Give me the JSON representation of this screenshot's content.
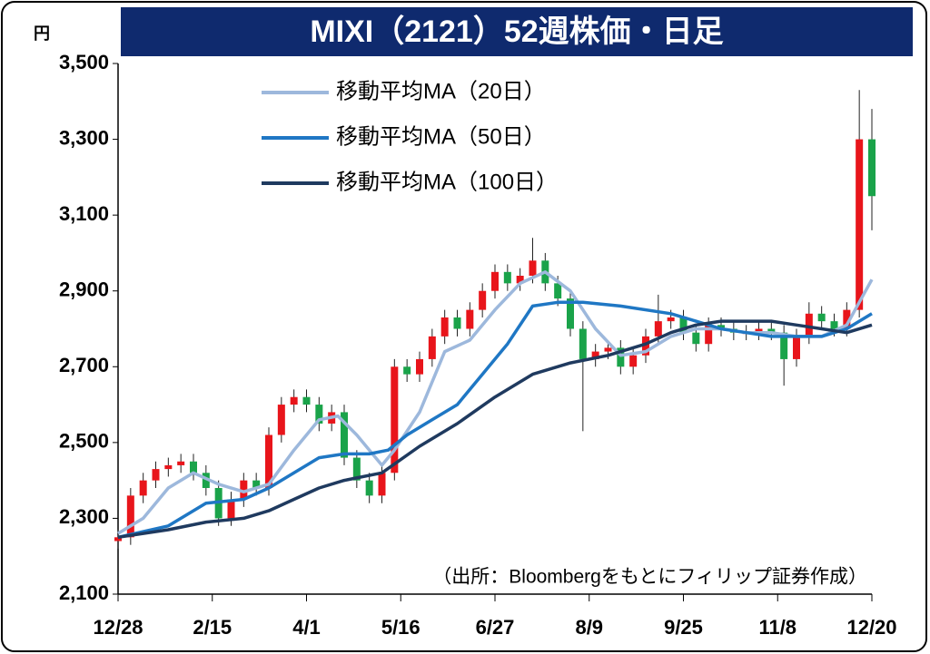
{
  "chart_data": {
    "type": "candlestick",
    "title": "MIXI（2121）52週株価・日足",
    "y_label": "円",
    "source": "（出所：Bloombergをもとにフィリップ証券作成）",
    "xlim": [
      0,
      240
    ],
    "xticks": [
      {
        "value": 0,
        "label": "12/28"
      },
      {
        "value": 30,
        "label": "2/15"
      },
      {
        "value": 60,
        "label": "4/1"
      },
      {
        "value": 90,
        "label": "5/16"
      },
      {
        "value": 120,
        "label": "6/27"
      },
      {
        "value": 150,
        "label": "8/9"
      },
      {
        "value": 180,
        "label": "9/25"
      },
      {
        "value": 210,
        "label": "11/8"
      },
      {
        "value": 240,
        "label": "12/20"
      }
    ],
    "ylim": [
      2100,
      3500
    ],
    "yticks": [
      {
        "value": 2100,
        "label": "2,100"
      },
      {
        "value": 2300,
        "label": "2,300"
      },
      {
        "value": 2500,
        "label": "2,500"
      },
      {
        "value": 2700,
        "label": "2,700"
      },
      {
        "value": 2900,
        "label": "2,900"
      },
      {
        "value": 3100,
        "label": "3,100"
      },
      {
        "value": 3300,
        "label": "3,300"
      },
      {
        "value": 3500,
        "label": "3,500"
      }
    ],
    "up_color": "#e8151b",
    "down_color": "#1aa34a",
    "candles": {
      "x": [
        0,
        4,
        8,
        12,
        16,
        20,
        24,
        28,
        32,
        36,
        40,
        44,
        48,
        52,
        56,
        60,
        64,
        68,
        72,
        76,
        80,
        84,
        88,
        92,
        96,
        100,
        104,
        108,
        112,
        116,
        120,
        124,
        128,
        132,
        136,
        140,
        144,
        148,
        152,
        156,
        160,
        164,
        168,
        172,
        176,
        180,
        184,
        188,
        192,
        196,
        200,
        204,
        208,
        212,
        216,
        220,
        224,
        228,
        232,
        236,
        240
      ],
      "open": [
        2240,
        2250,
        2360,
        2400,
        2430,
        2440,
        2450,
        2420,
        2380,
        2300,
        2350,
        2400,
        2380,
        2520,
        2600,
        2620,
        2600,
        2550,
        2580,
        2460,
        2400,
        2360,
        2420,
        2700,
        2680,
        2720,
        2780,
        2830,
        2800,
        2850,
        2900,
        2950,
        2920,
        2940,
        2980,
        2920,
        2880,
        2800,
        2720,
        2740,
        2750,
        2700,
        2730,
        2780,
        2820,
        2830,
        2790,
        2760,
        2810,
        2800,
        2790,
        2790,
        2800,
        2790,
        2720,
        2780,
        2840,
        2820,
        2800,
        2850,
        3300
      ],
      "high": [
        2270,
        2380,
        2420,
        2450,
        2460,
        2470,
        2470,
        2440,
        2400,
        2370,
        2420,
        2420,
        2540,
        2620,
        2640,
        2640,
        2620,
        2600,
        2600,
        2480,
        2420,
        2440,
        2720,
        2720,
        2740,
        2800,
        2850,
        2850,
        2870,
        2920,
        2970,
        2970,
        2960,
        3040,
        3000,
        2940,
        2900,
        2820,
        2760,
        2770,
        2770,
        2750,
        2800,
        2890,
        2850,
        2850,
        2810,
        2830,
        2830,
        2820,
        2810,
        2820,
        2820,
        2810,
        2800,
        2870,
        2860,
        2840,
        2870,
        3430,
        3380
      ],
      "low": [
        2220,
        2230,
        2340,
        2380,
        2410,
        2420,
        2400,
        2360,
        2280,
        2280,
        2330,
        2360,
        2360,
        2500,
        2580,
        2580,
        2530,
        2530,
        2440,
        2380,
        2340,
        2340,
        2400,
        2660,
        2660,
        2700,
        2760,
        2780,
        2780,
        2830,
        2880,
        2900,
        2900,
        2920,
        2900,
        2860,
        2780,
        2530,
        2700,
        2720,
        2680,
        2680,
        2710,
        2760,
        2800,
        2770,
        2740,
        2740,
        2780,
        2770,
        2770,
        2770,
        2770,
        2650,
        2700,
        2760,
        2800,
        2780,
        2780,
        2830,
        3060
      ],
      "close": [
        2250,
        2360,
        2400,
        2430,
        2440,
        2450,
        2420,
        2380,
        2300,
        2350,
        2400,
        2380,
        2520,
        2600,
        2620,
        2600,
        2550,
        2580,
        2460,
        2400,
        2360,
        2420,
        2700,
        2680,
        2720,
        2780,
        2830,
        2800,
        2850,
        2900,
        2950,
        2920,
        2940,
        2980,
        2920,
        2880,
        2800,
        2720,
        2740,
        2750,
        2700,
        2730,
        2780,
        2820,
        2830,
        2790,
        2760,
        2810,
        2800,
        2790,
        2790,
        2800,
        2790,
        2720,
        2780,
        2840,
        2820,
        2800,
        2850,
        3300,
        3150
      ]
    },
    "series": [
      {
        "name": "移動平均MA（20日）",
        "color": "#9db8dc",
        "x": [
          0,
          8,
          16,
          24,
          32,
          40,
          48,
          56,
          64,
          70,
          76,
          84,
          88,
          96,
          104,
          112,
          120,
          128,
          136,
          144,
          152,
          160,
          168,
          176,
          184,
          192,
          200,
          208,
          216,
          224,
          232,
          240
        ],
        "values": [
          2260,
          2300,
          2380,
          2420,
          2390,
          2370,
          2390,
          2480,
          2560,
          2570,
          2520,
          2440,
          2480,
          2580,
          2740,
          2770,
          2850,
          2920,
          2950,
          2900,
          2800,
          2730,
          2740,
          2780,
          2800,
          2800,
          2790,
          2790,
          2780,
          2780,
          2810,
          2930
        ]
      },
      {
        "name": "移動平均MA（50日）",
        "color": "#1f77c4",
        "x": [
          0,
          16,
          28,
          40,
          48,
          56,
          64,
          72,
          80,
          86,
          92,
          100,
          108,
          116,
          124,
          132,
          140,
          148,
          160,
          176,
          184,
          192,
          200,
          208,
          216,
          224,
          232,
          240
        ],
        "values": [
          2250,
          2280,
          2340,
          2350,
          2380,
          2420,
          2460,
          2470,
          2470,
          2480,
          2520,
          2560,
          2600,
          2680,
          2760,
          2860,
          2870,
          2870,
          2860,
          2840,
          2820,
          2800,
          2790,
          2780,
          2780,
          2780,
          2800,
          2840
        ]
      },
      {
        "name": "移動平均MA（100日）",
        "color": "#1f3a5f",
        "x": [
          0,
          16,
          28,
          40,
          48,
          56,
          64,
          72,
          84,
          96,
          108,
          120,
          132,
          144,
          156,
          168,
          176,
          184,
          192,
          200,
          208,
          216,
          224,
          232,
          240
        ],
        "values": [
          2250,
          2270,
          2290,
          2300,
          2320,
          2350,
          2380,
          2400,
          2420,
          2490,
          2550,
          2620,
          2680,
          2710,
          2730,
          2760,
          2790,
          2810,
          2820,
          2820,
          2820,
          2810,
          2800,
          2790,
          2810
        ]
      }
    ]
  }
}
